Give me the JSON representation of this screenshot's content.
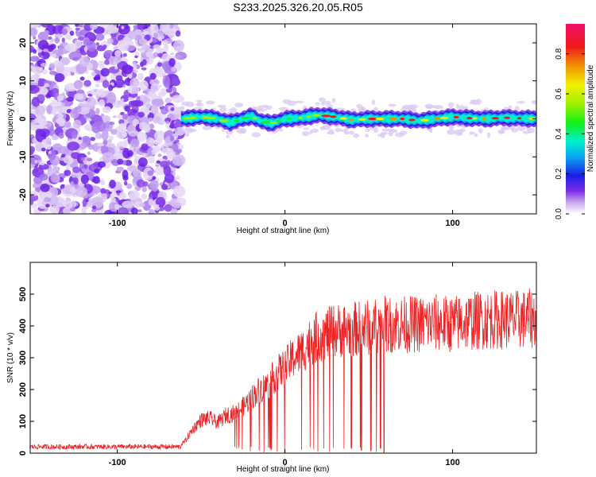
{
  "page": {
    "title": "S233.2025.326.20.05.R05"
  },
  "chart_data": [
    {
      "type": "heatmap",
      "title": "",
      "xlabel": "Height of straight line (km)",
      "ylabel": "Frequency (Hz)",
      "xlim": [
        -152,
        150
      ],
      "ylim": [
        -25,
        25
      ],
      "xticks": [
        -100,
        0,
        100
      ],
      "xtick_labels": [
        "-100",
        "0",
        "100"
      ],
      "yticks": [
        -20,
        -10,
        0,
        10,
        20
      ],
      "ytick_labels": [
        "-20",
        "-10",
        "0",
        "10",
        "20"
      ],
      "colorbar": {
        "label": "Normalized spectral amplitude",
        "range": [
          0,
          0.95
        ],
        "ticks": [
          0,
          0.2,
          0.4,
          0.6,
          0.8
        ],
        "tick_labels": [
          "0.0",
          "0.2",
          "0.4",
          "0.6",
          "0.8"
        ]
      },
      "noise_region_x": [
        -152,
        -62
      ],
      "signal_band_center_hz": [
        [
          -62,
          0.0
        ],
        [
          -50,
          0.5
        ],
        [
          -40,
          0.0
        ],
        [
          -33,
          -1.0
        ],
        [
          -25,
          0.0
        ],
        [
          -20,
          0.7
        ],
        [
          -15,
          -0.5
        ],
        [
          -8,
          -1.2
        ],
        [
          0,
          0.0
        ],
        [
          10,
          0.3
        ],
        [
          20,
          1.0
        ],
        [
          30,
          0.5
        ],
        [
          40,
          -0.3
        ],
        [
          50,
          0.0
        ],
        [
          60,
          0.0
        ],
        [
          70,
          0.0
        ],
        [
          80,
          -0.5
        ],
        [
          90,
          0.0
        ],
        [
          100,
          0.5
        ],
        [
          110,
          0.2
        ],
        [
          120,
          0.0
        ],
        [
          130,
          0.3
        ],
        [
          150,
          0.0
        ]
      ],
      "grid": false,
      "legend": "none"
    },
    {
      "type": "line",
      "title": "",
      "xlabel": "Height of straight line (km)",
      "ylabel": "SNR (10 * v/v)",
      "xlim": [
        -152,
        150
      ],
      "ylim": [
        0,
        600
      ],
      "xticks": [
        -100,
        0,
        100
      ],
      "xtick_labels": [
        "-100",
        "0",
        "100"
      ],
      "yticks": [
        0,
        100,
        200,
        300,
        400,
        500
      ],
      "ytick_labels": [
        "0",
        "100",
        "200",
        "300",
        "400",
        "500"
      ],
      "series": [
        {
          "color": "#ee2222",
          "x": [
            -152,
            -140,
            -120,
            -100,
            -80,
            -65,
            -60,
            -55,
            -50,
            -45,
            -40,
            -35,
            -30,
            -25,
            -20,
            -15,
            -10,
            -5,
            0,
            5,
            10,
            15,
            20,
            25,
            30,
            40,
            50,
            60,
            70,
            80,
            90,
            100,
            110,
            120,
            130,
            140,
            150
          ],
          "y": [
            20,
            20,
            20,
            20,
            20,
            20,
            35,
            75,
            105,
            110,
            95,
            120,
            125,
            145,
            175,
            200,
            215,
            250,
            270,
            300,
            320,
            350,
            370,
            375,
            385,
            390,
            395,
            405,
            405,
            405,
            410,
            405,
            415,
            420,
            420,
            420,
            425
          ]
        }
      ],
      "grid": false,
      "legend": "none"
    }
  ]
}
